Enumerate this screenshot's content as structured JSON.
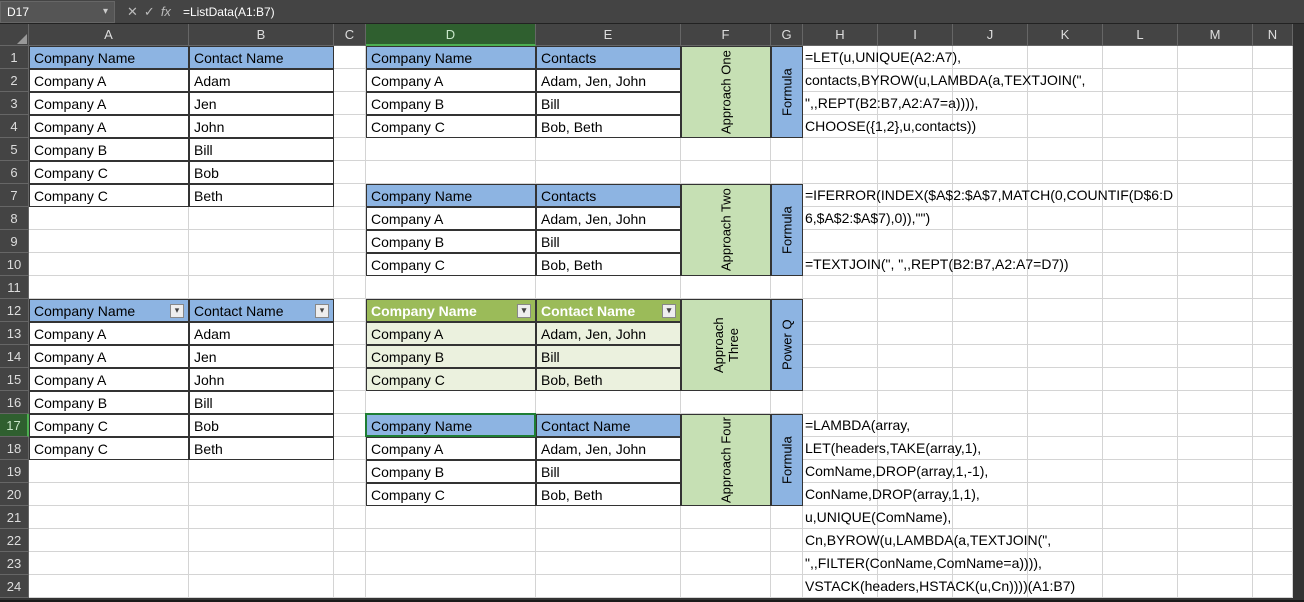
{
  "formula_bar": {
    "cell_ref": "D17",
    "formula": "=ListData(A1:B7)"
  },
  "col_widths": {
    "A": 160,
    "B": 145,
    "C": 32,
    "D": 170,
    "E": 145,
    "F": 90,
    "G": 32,
    "H": 75,
    "I": 75,
    "J": 75,
    "K": 75,
    "L": 75,
    "M": 75,
    "N": 40
  },
  "columns": [
    "A",
    "B",
    "C",
    "D",
    "E",
    "F",
    "G",
    "H",
    "I",
    "J",
    "K",
    "L",
    "M",
    "N"
  ],
  "selected_col": "D",
  "selected_row": 17,
  "row_count": 24,
  "table_left_top": {
    "headers": [
      "Company Name",
      "Contact Name"
    ],
    "rows": [
      [
        "Company A",
        "Adam"
      ],
      [
        "Company A",
        "Jen"
      ],
      [
        "Company A",
        "John"
      ],
      [
        "Company B",
        "Bill"
      ],
      [
        "Company C",
        "Bob"
      ],
      [
        "Company C",
        "Beth"
      ]
    ]
  },
  "table_left_btm": {
    "headers": [
      "Company Name",
      "Contact Name"
    ],
    "rows": [
      [
        "Company A",
        "Adam"
      ],
      [
        "Company A",
        "Jen"
      ],
      [
        "Company A",
        "John"
      ],
      [
        "Company B",
        "Bill"
      ],
      [
        "Company C",
        "Bob"
      ],
      [
        "Company C",
        "Beth"
      ]
    ]
  },
  "approach1": {
    "label": "Approach One",
    "flabel": "Formula",
    "headers": [
      "Company Name",
      "Contacts"
    ],
    "rows": [
      [
        "Company A",
        "Adam, Jen, John"
      ],
      [
        "Company B",
        "Bill"
      ],
      [
        "Company C",
        "Bob, Beth"
      ]
    ],
    "ftext": [
      "=LET(u,UNIQUE(A2:A7),",
      "contacts,BYROW(u,LAMBDA(a,TEXTJOIN(\",",
      "\",,REPT(B2:B7,A2:A7=a)))),",
      "CHOOSE({1,2},u,contacts))"
    ]
  },
  "approach2": {
    "label": "Approach Two",
    "flabel": "Formula",
    "headers": [
      "Company Name",
      "Contacts"
    ],
    "rows": [
      [
        "Company A",
        "Adam, Jen, John"
      ],
      [
        "Company B",
        "Bill"
      ],
      [
        "Company C",
        "Bob, Beth"
      ]
    ],
    "ftext": [
      "=IFERROR(INDEX($A$2:$A$7,MATCH(0,COUNTIF(D$6:D",
      "6,$A$2:$A$7),0)),\"\")",
      "=TEXTJOIN(\", \",,REPT(B2:B7,A2:A7=D7))"
    ]
  },
  "approach3": {
    "label": "Approach Three",
    "flabel": "Power Q",
    "headers": [
      "Company Name",
      "Contact Name"
    ],
    "rows": [
      [
        "Company A",
        "Adam, Jen, John"
      ],
      [
        "Company B",
        "Bill"
      ],
      [
        "Company C",
        "Bob, Beth"
      ]
    ]
  },
  "approach4": {
    "label": "Approach Four",
    "flabel": "Formula",
    "headers": [
      "Company Name",
      "Contact Name"
    ],
    "rows": [
      [
        "Company A",
        "Adam, Jen, John"
      ],
      [
        "Company B",
        "Bill"
      ],
      [
        "Company C",
        "Bob, Beth"
      ]
    ],
    "ftext": [
      "=LAMBDA(array,",
      "LET(headers,TAKE(array,1),",
      "ComName,DROP(array,1,-1),",
      "ConName,DROP(array,1,1),",
      "u,UNIQUE(ComName),",
      "Cn,BYROW(u,LAMBDA(a,TEXTJOIN(\",",
      "\",,FILTER(ConName,ComName=a)))),",
      "VSTACK(headers,HSTACK(u,Cn))))(A1:B7)"
    ]
  },
  "colors": {
    "header_blue": "#8db4e2",
    "header_green": "#9bbb59",
    "light_green": "#c6e0b4",
    "alt_green": "#ebf1de"
  }
}
